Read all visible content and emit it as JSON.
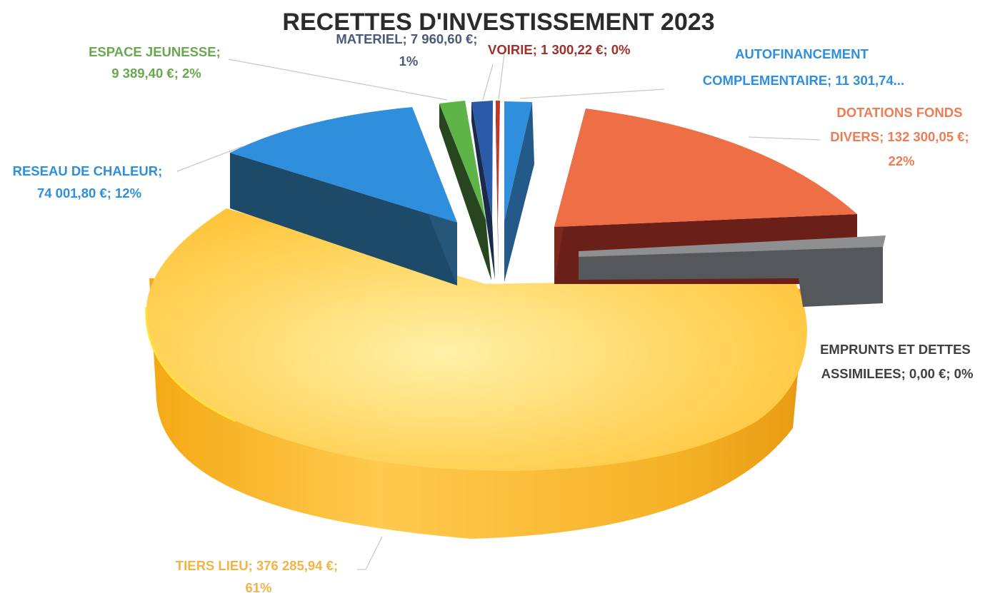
{
  "chart_data": {
    "type": "pie",
    "title": "RECETTES D'INVESTISSEMENT 2023",
    "three_d": true,
    "exploded": true,
    "legend": "none",
    "slices": [
      {
        "name": "AUTOFINANCEMENT COMPLEMENTAIRE",
        "value": 11301.74,
        "percent": 2,
        "color": "#2f8fdc",
        "label_lines": [
          "AUTOFINANCEMENT",
          "COMPLEMENTAIRE; 11 301,74..."
        ],
        "label_color": "#2f8fdc"
      },
      {
        "name": "DOTATIONS FONDS DIVERS",
        "value": 132300.05,
        "percent": 22,
        "color": "#ee6f45",
        "label_lines": [
          "DOTATIONS FONDS",
          "DIVERS; 132 300,05 €;",
          "22%"
        ],
        "label_color": "#ee7c55"
      },
      {
        "name": "EMPRUNTS ET DETTES ASSIMILEES",
        "value": 0.0,
        "percent": 0,
        "color": "#5a5d60",
        "label_lines": [
          "EMPRUNTS ET DETTES",
          "ASSIMILEES; 0,00 €; 0%"
        ],
        "label_color": "#404040"
      },
      {
        "name": "TIERS LIEU",
        "value": 376285.94,
        "percent": 61,
        "color": "#ffc23d",
        "label_lines": [
          "TIERS LIEU; 376 285,94 €;",
          "61%"
        ],
        "label_color": "#f2b445"
      },
      {
        "name": "RESEAU DE CHALEUR",
        "value": 74001.8,
        "percent": 12,
        "color": "#2f8fdc",
        "label_lines": [
          "RESEAU DE CHALEUR;",
          "74 001,80 €; 12%"
        ],
        "label_color": "#2f8fdc"
      },
      {
        "name": "ESPACE JEUNESSE",
        "value": 9389.4,
        "percent": 2,
        "color": "#5fb448",
        "label_lines": [
          "ESPACE JEUNESSE;",
          "9 389,40 €; 2%"
        ],
        "label_color": "#6aa84f"
      },
      {
        "name": "MATERIEL",
        "value": 7960.6,
        "percent": 1,
        "color": "#2a5aa8",
        "label_lines": [
          "MATERIEL; 7 960,60 €;",
          "1%"
        ],
        "label_color": "#4a5a78"
      },
      {
        "name": "VOIRIE",
        "value": 1300.22,
        "percent": 0,
        "color": "#c0392b",
        "label_lines": [
          "VOIRIE; 1 300,22 €; 0%"
        ],
        "label_color": "#a0302c"
      }
    ]
  }
}
